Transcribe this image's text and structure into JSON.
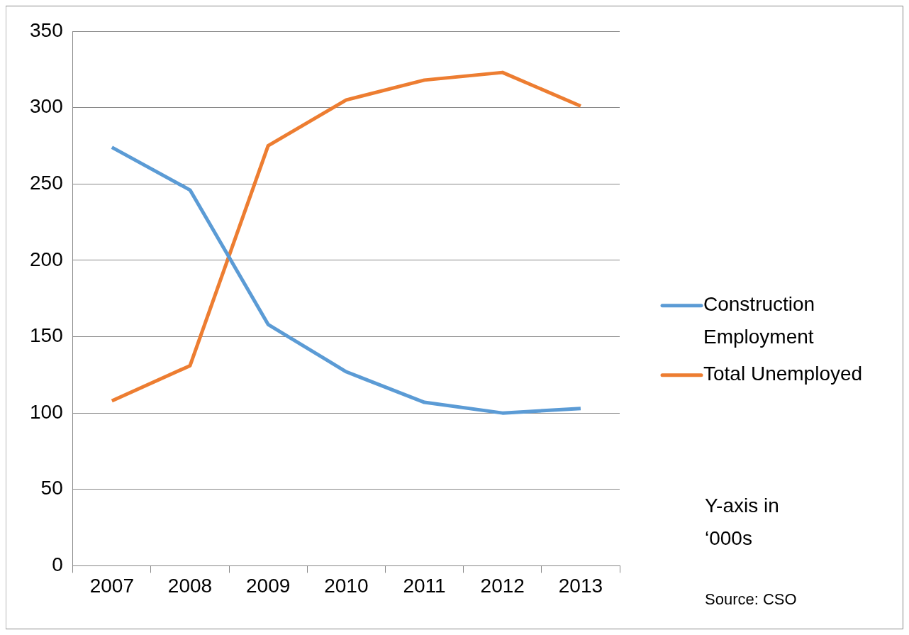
{
  "chart_data": {
    "type": "line",
    "categories": [
      "2007",
      "2008",
      "2009",
      "2010",
      "2011",
      "2012",
      "2013"
    ],
    "series": [
      {
        "name": "Construction Employment",
        "color": "#5b9bd5",
        "values": [
          274,
          246,
          158,
          127,
          107,
          100,
          103
        ]
      },
      {
        "name": "Total Unemployed",
        "color": "#ed7d31",
        "values": [
          108,
          131,
          275,
          305,
          318,
          323,
          301
        ]
      }
    ],
    "ylim": [
      0,
      350
    ],
    "yticks": [
      0,
      50,
      100,
      150,
      200,
      250,
      300,
      350
    ],
    "grid": "y",
    "legend": "right",
    "marker": "none",
    "line_style": "solid",
    "annotations": [
      "Y-axis in ‘000s",
      "Source: CSO"
    ]
  }
}
